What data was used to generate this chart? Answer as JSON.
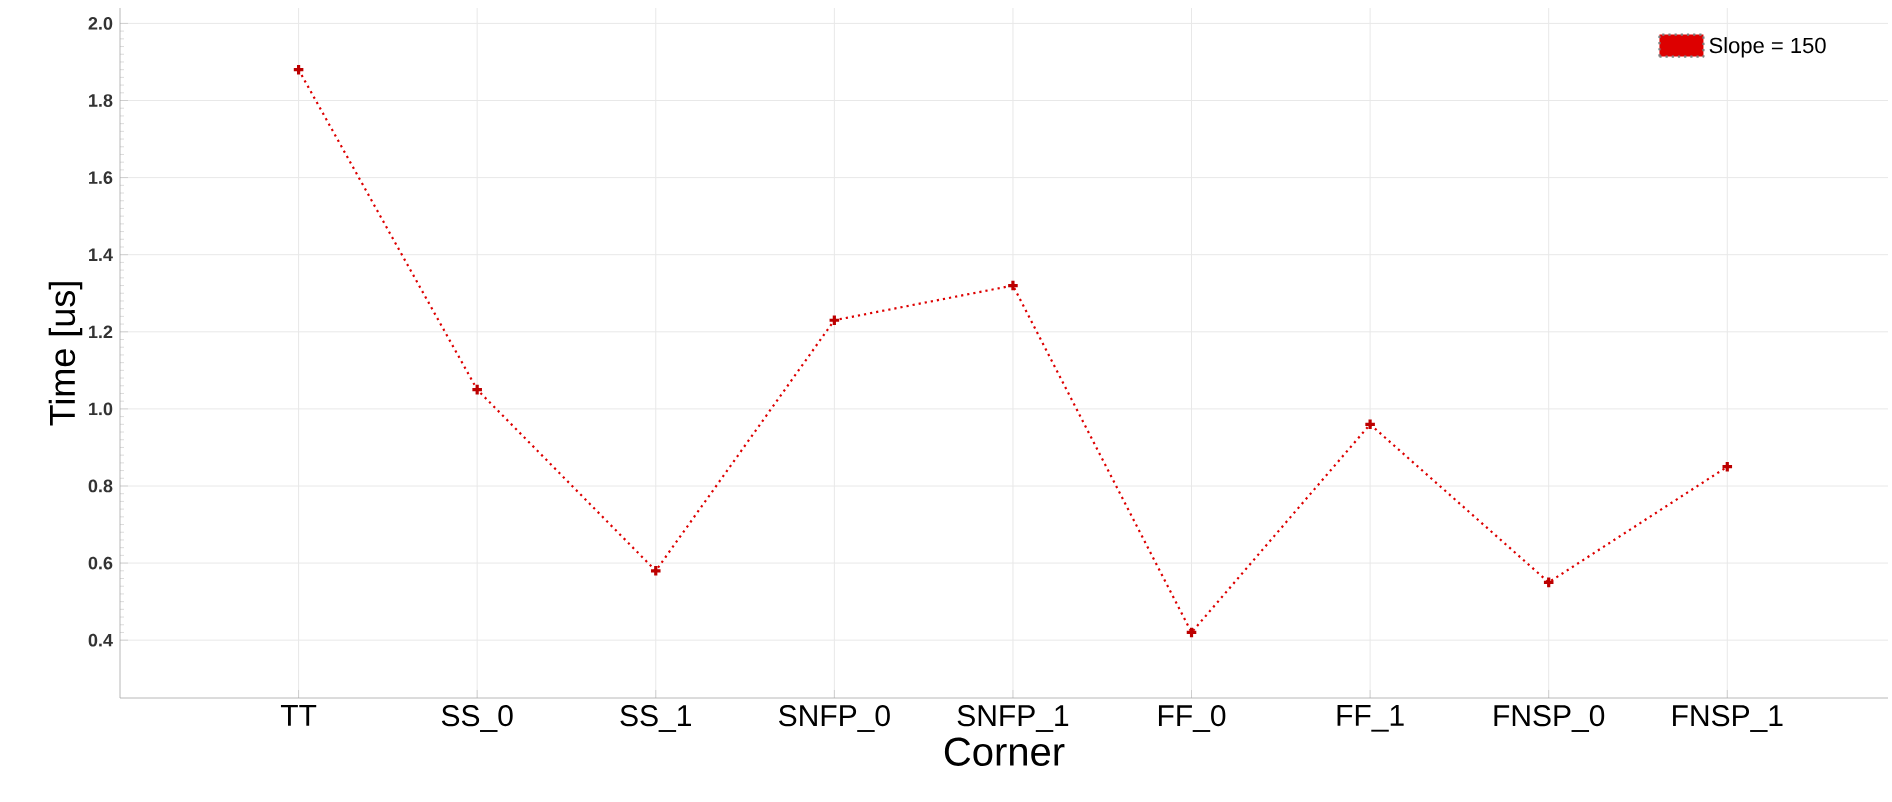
{
  "chart_data": {
    "type": "line",
    "xlabel": "Corner",
    "ylabel": "Time [us]",
    "categories": [
      "TT",
      "SS_0",
      "SS_1",
      "SNFP_0",
      "SNFP_1",
      "FF_0",
      "FF_1",
      "FNSP_0",
      "FNSP_1"
    ],
    "series": [
      {
        "name": "Slope = 150",
        "color": "#dd0000",
        "values": [
          1.88,
          1.05,
          0.58,
          1.23,
          1.32,
          0.42,
          0.96,
          0.55,
          0.85
        ]
      }
    ],
    "ylim": [
      0.25,
      2.04
    ],
    "yticks": [
      0.4,
      0.6,
      0.8,
      {
        "value": 1.0,
        "label": "1.0"
      },
      1.2,
      1.4,
      1.6,
      1.8,
      {
        "value": 2.0,
        "label": "2.0"
      }
    ],
    "grid": true,
    "legend": "top right",
    "marker": "cross",
    "line_style": "dotted"
  }
}
